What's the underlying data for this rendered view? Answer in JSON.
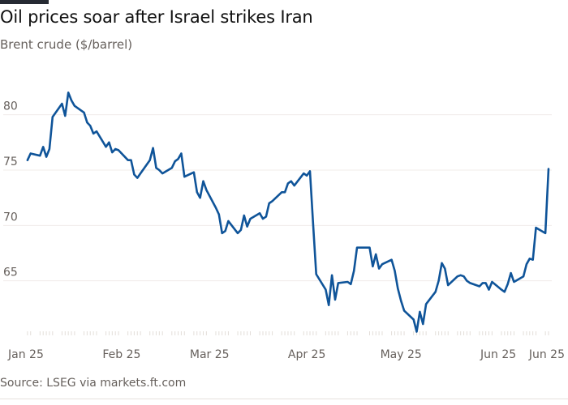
{
  "header": {
    "title": "Oil prices soar after Israel strikes Iran",
    "subtitle": "Brent crude ($/barrel)"
  },
  "footer": {
    "source": "Source: LSEG via markets.ft.com"
  },
  "colors": {
    "line": "#0f5499",
    "grid": "#f0ece9",
    "axis_text": "#66605c"
  },
  "chart_data": {
    "type": "line",
    "title": "Oil prices soar after Israel strikes Iran",
    "subtitle": "Brent crude ($/barrel)",
    "xlabel": "",
    "ylabel": "",
    "ylim": [
      60,
      84
    ],
    "yticks": [
      65,
      70,
      75,
      80
    ],
    "grid": true,
    "x_ticks": [
      {
        "date": "2025-01-01",
        "label": "Jan 25"
      },
      {
        "date": "2025-02-01",
        "label": "Feb 25"
      },
      {
        "date": "2025-03-01",
        "label": "Mar 25"
      },
      {
        "date": "2025-04-01",
        "label": "Apr 25"
      },
      {
        "date": "2025-05-01",
        "label": "May 25"
      },
      {
        "date": "2025-06-01",
        "label": "Jun 25"
      },
      {
        "date": "2025-06-13",
        "label": "Jun 25"
      }
    ],
    "series": [
      {
        "name": "",
        "points": [
          [
            "2025-01-02",
            75.9
          ],
          [
            "2025-01-03",
            76.5
          ],
          [
            "2025-01-06",
            76.3
          ],
          [
            "2025-01-07",
            77.1
          ],
          [
            "2025-01-08",
            76.2
          ],
          [
            "2025-01-09",
            76.9
          ],
          [
            "2025-01-10",
            79.8
          ],
          [
            "2025-01-13",
            81.0
          ],
          [
            "2025-01-14",
            79.9
          ],
          [
            "2025-01-15",
            82.0
          ],
          [
            "2025-01-16",
            81.3
          ],
          [
            "2025-01-17",
            80.8
          ],
          [
            "2025-01-20",
            80.2
          ],
          [
            "2025-01-21",
            79.3
          ],
          [
            "2025-01-22",
            79.0
          ],
          [
            "2025-01-23",
            78.3
          ],
          [
            "2025-01-24",
            78.5
          ],
          [
            "2025-01-27",
            77.1
          ],
          [
            "2025-01-28",
            77.5
          ],
          [
            "2025-01-29",
            76.6
          ],
          [
            "2025-01-30",
            76.9
          ],
          [
            "2025-01-31",
            76.8
          ],
          [
            "2025-02-03",
            75.9
          ],
          [
            "2025-02-04",
            75.9
          ],
          [
            "2025-02-05",
            74.6
          ],
          [
            "2025-02-06",
            74.3
          ],
          [
            "2025-02-07",
            74.7
          ],
          [
            "2025-02-10",
            75.9
          ],
          [
            "2025-02-11",
            77.0
          ],
          [
            "2025-02-12",
            75.2
          ],
          [
            "2025-02-13",
            75.0
          ],
          [
            "2025-02-14",
            74.7
          ],
          [
            "2025-02-17",
            75.2
          ],
          [
            "2025-02-18",
            75.8
          ],
          [
            "2025-02-19",
            76.0
          ],
          [
            "2025-02-20",
            76.5
          ],
          [
            "2025-02-21",
            74.4
          ],
          [
            "2025-02-24",
            74.8
          ],
          [
            "2025-02-25",
            73.0
          ],
          [
            "2025-02-26",
            72.5
          ],
          [
            "2025-02-27",
            74.0
          ],
          [
            "2025-02-28",
            73.2
          ],
          [
            "2025-03-03",
            71.6
          ],
          [
            "2025-03-04",
            71.0
          ],
          [
            "2025-03-05",
            69.3
          ],
          [
            "2025-03-06",
            69.5
          ],
          [
            "2025-03-07",
            70.4
          ],
          [
            "2025-03-10",
            69.3
          ],
          [
            "2025-03-11",
            69.6
          ],
          [
            "2025-03-12",
            70.9
          ],
          [
            "2025-03-13",
            69.9
          ],
          [
            "2025-03-14",
            70.6
          ],
          [
            "2025-03-17",
            71.1
          ],
          [
            "2025-03-18",
            70.6
          ],
          [
            "2025-03-19",
            70.8
          ],
          [
            "2025-03-20",
            72.0
          ],
          [
            "2025-03-21",
            72.2
          ],
          [
            "2025-03-24",
            73.0
          ],
          [
            "2025-03-25",
            73.0
          ],
          [
            "2025-03-26",
            73.8
          ],
          [
            "2025-03-27",
            74.0
          ],
          [
            "2025-03-28",
            73.6
          ],
          [
            "2025-03-31",
            74.7
          ],
          [
            "2025-04-01",
            74.5
          ],
          [
            "2025-04-02",
            74.9
          ],
          [
            "2025-04-03",
            70.1
          ],
          [
            "2025-04-04",
            65.6
          ],
          [
            "2025-04-07",
            64.2
          ],
          [
            "2025-04-08",
            62.8
          ],
          [
            "2025-04-09",
            65.5
          ],
          [
            "2025-04-10",
            63.3
          ],
          [
            "2025-04-11",
            64.8
          ],
          [
            "2025-04-14",
            64.9
          ],
          [
            "2025-04-15",
            64.7
          ],
          [
            "2025-04-16",
            65.9
          ],
          [
            "2025-04-17",
            68.0
          ],
          [
            "2025-04-21",
            68.0
          ],
          [
            "2025-04-22",
            66.3
          ],
          [
            "2025-04-23",
            67.4
          ],
          [
            "2025-04-24",
            66.1
          ],
          [
            "2025-04-25",
            66.5
          ],
          [
            "2025-04-28",
            66.9
          ],
          [
            "2025-04-29",
            65.9
          ],
          [
            "2025-04-30",
            64.3
          ],
          [
            "2025-05-01",
            63.2
          ],
          [
            "2025-05-02",
            62.3
          ],
          [
            "2025-05-05",
            61.5
          ],
          [
            "2025-05-06",
            60.4
          ],
          [
            "2025-05-07",
            62.2
          ],
          [
            "2025-05-08",
            61.1
          ],
          [
            "2025-05-09",
            62.9
          ],
          [
            "2025-05-12",
            64.0
          ],
          [
            "2025-05-13",
            65.0
          ],
          [
            "2025-05-14",
            66.6
          ],
          [
            "2025-05-15",
            66.1
          ],
          [
            "2025-05-16",
            64.6
          ],
          [
            "2025-05-19",
            65.4
          ],
          [
            "2025-05-20",
            65.5
          ],
          [
            "2025-05-21",
            65.4
          ],
          [
            "2025-05-22",
            65.0
          ],
          [
            "2025-05-23",
            64.8
          ],
          [
            "2025-05-26",
            64.5
          ],
          [
            "2025-05-27",
            64.8
          ],
          [
            "2025-05-28",
            64.8
          ],
          [
            "2025-05-29",
            64.2
          ],
          [
            "2025-05-30",
            64.9
          ],
          [
            "2025-06-02",
            64.2
          ],
          [
            "2025-06-03",
            64.0
          ],
          [
            "2025-06-04",
            64.7
          ],
          [
            "2025-06-05",
            65.7
          ],
          [
            "2025-06-06",
            64.9
          ],
          [
            "2025-06-09",
            65.4
          ],
          [
            "2025-06-10",
            66.5
          ],
          [
            "2025-06-11",
            67.0
          ],
          [
            "2025-06-12",
            66.9
          ],
          [
            "2025-06-13",
            69.8
          ],
          [
            "2025-06-16",
            69.3
          ],
          [
            "2025-06-17",
            75.1
          ]
        ]
      }
    ]
  }
}
